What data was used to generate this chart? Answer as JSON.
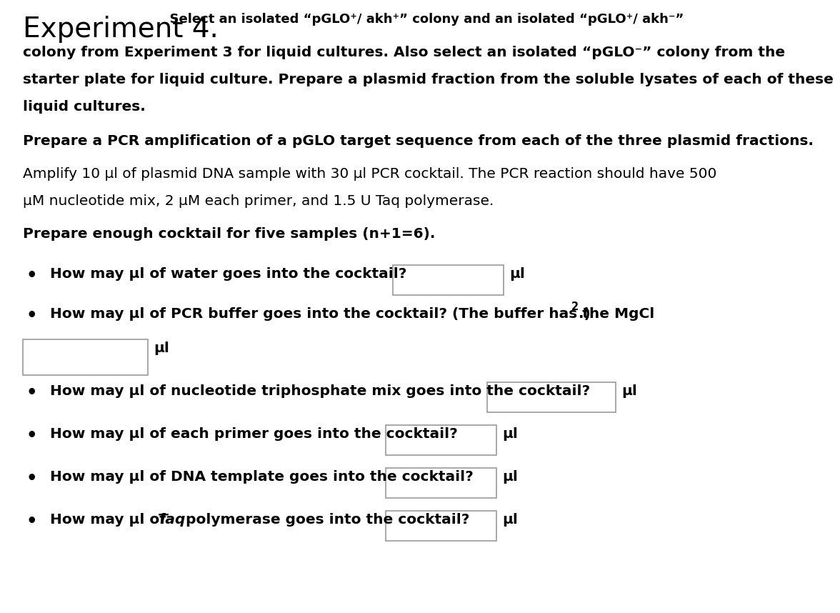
{
  "background_color": "#ffffff",
  "pg1_line1_bold": "Select an isolated “pGLO⁺/ akh⁺” colony and an isolated “pGLO⁺/ akh⁻”",
  "pg1_line2": "colony from Experiment 3 for liquid cultures. Also select an isolated “pGLO⁻” colony from the",
  "pg1_line3": "starter plate for liquid culture. Prepare a plasmid fraction from the soluble lysates of each of these",
  "pg1_line4": "liquid cultures.",
  "para2": "Prepare a PCR amplification of a pGLO target sequence from each of the three plasmid fractions.",
  "para3_line1": "Amplify 10 μl of plasmid DNA sample with 30 μl PCR cocktail. The PCR reaction should have 500",
  "para3_line2": "μM nucleotide mix, 2 μM each primer, and 1.5 U Taq polymerase.",
  "para4": "Prepare enough cocktail for five samples (n+1=6).",
  "bullet1": "How may μl of water goes into the cocktail?",
  "bullet2_pre": "How may μl of PCR buffer goes into the cocktail? (The buffer has the MgCl",
  "bullet2_sub": "2",
  "bullet2_post": ".)",
  "bullet3": "How may μl of nucleotide triphosphate mix goes into the cocktail?",
  "bullet4": "How may μl of each primer goes into the cocktail?",
  "bullet5": "How may μl of DNA template goes into the cocktail?",
  "bullet6_pre": "How may μl of ",
  "bullet6_taq": "Taq",
  "bullet6_post": " polymerase goes into the cocktail?",
  "ul_label": "μl",
  "title_large": "Experiment 4.",
  "title_small": "  Select an isolated “pGLO⁺/ akh⁺” colony and an isolated “pGLO⁺/ akh⁻”"
}
